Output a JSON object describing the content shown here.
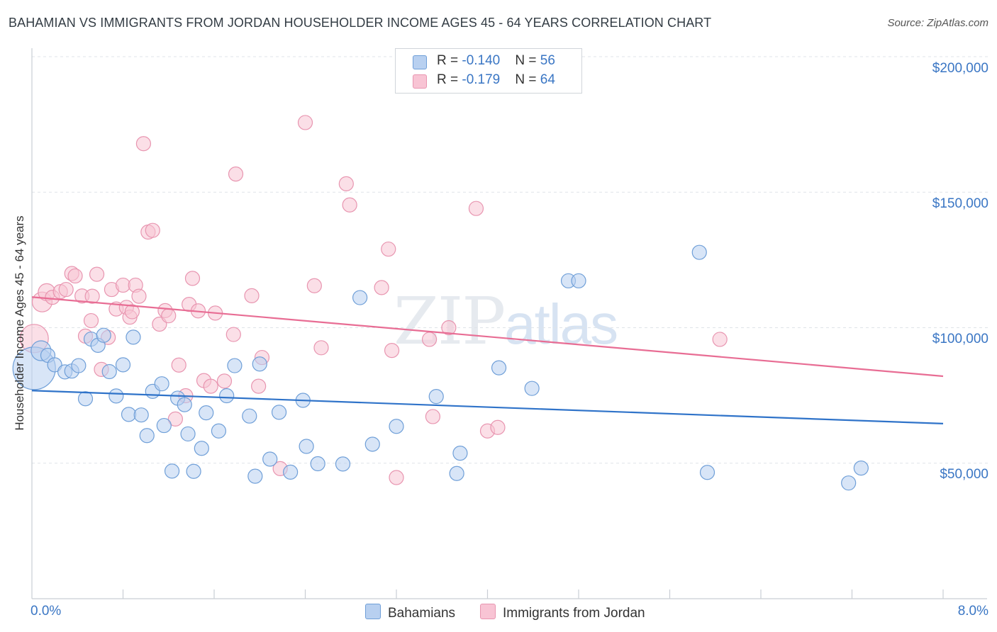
{
  "header": {
    "title": "BAHAMIAN VS IMMIGRANTS FROM JORDAN HOUSEHOLDER INCOME AGES 45 - 64 YEARS CORRELATION CHART",
    "source": "Source: ZipAtlas.com"
  },
  "watermark": {
    "part1": "ZIP",
    "part2": "atlas"
  },
  "stats": {
    "bahamians": {
      "r_label": "R = ",
      "r_value": "-0.140",
      "n_label": "N = ",
      "n_value": "56"
    },
    "jordan": {
      "r_label": "R = ",
      "r_value": "-0.179",
      "n_label": "N = ",
      "n_value": "64"
    }
  },
  "legend": {
    "bahamians": "Bahamians",
    "jordan": "Immigrants from Jordan"
  },
  "colors": {
    "bahamians_fill": "#b8d0f0",
    "bahamians_stroke": "#6f9fd8",
    "bahamians_line": "#2f73c9",
    "jordan_fill": "#f8c4d4",
    "jordan_stroke": "#e895b0",
    "jordan_line": "#e86d94",
    "axis_label": "#3a76c4",
    "grid": "#dfe3e8"
  },
  "chart_data": {
    "type": "scatter",
    "title": "BAHAMIAN VS IMMIGRANTS FROM JORDAN HOUSEHOLDER INCOME AGES 45 - 64 YEARS CORRELATION CHART",
    "xlabel": "",
    "ylabel": "Householder Income Ages 45 - 64 years",
    "xlim": [
      0,
      8
    ],
    "ylim": [
      0,
      205000
    ],
    "x_tick_labels": [
      "0.0%",
      "8.0%"
    ],
    "y_ticks": [
      50000,
      100000,
      150000,
      200000
    ],
    "y_tick_labels": [
      "$50,000",
      "$100,000",
      "$150,000",
      "$200,000"
    ],
    "grid": true,
    "legend_position": "bottom-center",
    "series": [
      {
        "name": "Bahamians",
        "r": -0.14,
        "n": 56,
        "trend": [
          [
            0,
            76800
          ],
          [
            8,
            64600
          ]
        ],
        "points": [
          [
            0.02,
            85000,
            30
          ],
          [
            0.08,
            91500,
            14
          ],
          [
            0.14,
            89800,
            10
          ],
          [
            0.2,
            86300,
            10
          ],
          [
            0.29,
            83700,
            10
          ],
          [
            0.35,
            84000,
            10
          ],
          [
            0.41,
            86000,
            10
          ],
          [
            0.47,
            73800,
            10
          ],
          [
            0.52,
            95800,
            10
          ],
          [
            0.58,
            93500,
            10
          ],
          [
            0.63,
            97200,
            10
          ],
          [
            0.68,
            83800,
            10
          ],
          [
            0.74,
            74800,
            10
          ],
          [
            0.8,
            86300,
            10
          ],
          [
            0.85,
            68000,
            10
          ],
          [
            0.89,
            96500,
            10
          ],
          [
            0.96,
            67800,
            10
          ],
          [
            1.01,
            60200,
            10
          ],
          [
            1.06,
            76500,
            10
          ],
          [
            1.14,
            79300,
            10
          ],
          [
            1.16,
            63900,
            10
          ],
          [
            1.23,
            47100,
            10
          ],
          [
            1.28,
            74000,
            10
          ],
          [
            1.34,
            71600,
            10
          ],
          [
            1.37,
            60800,
            10
          ],
          [
            1.42,
            47000,
            10
          ],
          [
            1.49,
            55500,
            10
          ],
          [
            1.53,
            68600,
            10
          ],
          [
            1.64,
            61900,
            10
          ],
          [
            1.71,
            74900,
            10
          ],
          [
            1.78,
            86000,
            10
          ],
          [
            1.91,
            67400,
            10
          ],
          [
            1.96,
            45200,
            10
          ],
          [
            2.0,
            86600,
            10
          ],
          [
            2.09,
            51500,
            10
          ],
          [
            2.17,
            68800,
            10
          ],
          [
            2.27,
            46700,
            10
          ],
          [
            2.38,
            73200,
            10
          ],
          [
            2.41,
            56200,
            10
          ],
          [
            2.51,
            49800,
            10
          ],
          [
            2.73,
            49700,
            10
          ],
          [
            2.88,
            111100,
            10
          ],
          [
            2.99,
            57000,
            10
          ],
          [
            3.2,
            63600,
            10
          ],
          [
            3.55,
            74600,
            10
          ],
          [
            3.73,
            46200,
            10
          ],
          [
            3.76,
            53700,
            10
          ],
          [
            4.1,
            85200,
            10
          ],
          [
            4.39,
            77600,
            10
          ],
          [
            4.71,
            117300,
            10
          ],
          [
            4.8,
            117300,
            10
          ],
          [
            5.86,
            127800,
            10
          ],
          [
            5.93,
            46600,
            10
          ],
          [
            7.17,
            42700,
            10
          ],
          [
            7.28,
            48200,
            10
          ]
        ]
      },
      {
        "name": "Immigrants from Jordan",
        "r": -0.179,
        "n": 64,
        "trend": [
          [
            0,
            111300
          ],
          [
            8,
            82100
          ]
        ],
        "points": [
          [
            0.02,
            96000,
            20
          ],
          [
            0.09,
            109500,
            14
          ],
          [
            0.13,
            113100,
            12
          ],
          [
            0.18,
            111200,
            10
          ],
          [
            0.25,
            113300,
            10
          ],
          [
            0.3,
            114100,
            10
          ],
          [
            0.35,
            120000,
            10
          ],
          [
            0.38,
            119100,
            10
          ],
          [
            0.44,
            111700,
            10
          ],
          [
            0.47,
            96900,
            10
          ],
          [
            0.52,
            102600,
            10
          ],
          [
            0.53,
            111600,
            10
          ],
          [
            0.57,
            119700,
            10
          ],
          [
            0.61,
            84600,
            10
          ],
          [
            0.67,
            96400,
            10
          ],
          [
            0.7,
            114100,
            10
          ],
          [
            0.74,
            106900,
            10
          ],
          [
            0.8,
            115700,
            10
          ],
          [
            0.83,
            107500,
            10
          ],
          [
            0.86,
            103900,
            10
          ],
          [
            0.88,
            105900,
            10
          ],
          [
            0.91,
            115700,
            10
          ],
          [
            0.94,
            111600,
            10
          ],
          [
            0.98,
            167900,
            10
          ],
          [
            1.02,
            135300,
            10
          ],
          [
            1.06,
            135900,
            10
          ],
          [
            1.12,
            101300,
            10
          ],
          [
            1.17,
            106300,
            10
          ],
          [
            1.2,
            104400,
            10
          ],
          [
            1.26,
            66300,
            10
          ],
          [
            1.29,
            86200,
            10
          ],
          [
            1.35,
            74900,
            10
          ],
          [
            1.38,
            108600,
            10
          ],
          [
            1.41,
            118200,
            10
          ],
          [
            1.46,
            106200,
            10
          ],
          [
            1.51,
            80500,
            10
          ],
          [
            1.57,
            78400,
            10
          ],
          [
            1.61,
            105400,
            10
          ],
          [
            1.69,
            80300,
            10
          ],
          [
            1.77,
            97500,
            10
          ],
          [
            1.79,
            156700,
            10
          ],
          [
            1.93,
            111800,
            10
          ],
          [
            1.99,
            78400,
            10
          ],
          [
            2.02,
            89000,
            10
          ],
          [
            2.18,
            48000,
            10
          ],
          [
            2.4,
            175700,
            10
          ],
          [
            2.48,
            115500,
            10
          ],
          [
            2.54,
            92600,
            10
          ],
          [
            2.76,
            153100,
            10
          ],
          [
            2.79,
            145300,
            10
          ],
          [
            3.07,
            114800,
            10
          ],
          [
            3.13,
            129000,
            10
          ],
          [
            3.16,
            91600,
            10
          ],
          [
            3.2,
            44700,
            10
          ],
          [
            3.49,
            95700,
            10
          ],
          [
            3.52,
            67200,
            10
          ],
          [
            3.66,
            100000,
            10
          ],
          [
            3.9,
            144000,
            10
          ],
          [
            4.0,
            61900,
            10
          ],
          [
            4.09,
            63200,
            10
          ],
          [
            6.04,
            95700,
            10
          ]
        ]
      }
    ]
  }
}
